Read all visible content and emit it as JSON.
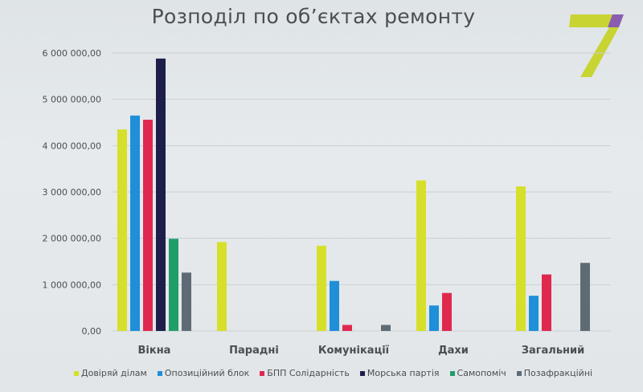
{
  "colors": {
    "background": "#e3e7e9",
    "title_text": "#4a4e52",
    "grid": "#c9cfd3",
    "axis_text": "#4a4e52",
    "logo_yellow": "#c8d432",
    "logo_purple": "#8a5db0"
  },
  "logo": {
    "icon": "channel-7-logo",
    "text": "7"
  },
  "chart_data": {
    "type": "bar",
    "title": "Розподіл по об’єктах ремонту",
    "categories": [
      "Вікна",
      "Парадні",
      "Комунікації",
      "Дахи",
      "Загальний"
    ],
    "y_ticks": [
      "0,00",
      "1 000 000,00",
      "2 000 000,00",
      "3 000 000,00",
      "4 000 000,00",
      "5 000 000,00",
      "6 000 000,00"
    ],
    "ylim": [
      0,
      6000000
    ],
    "grid": true,
    "legend_position": "bottom",
    "series": [
      {
        "name": "Довіряй ділам",
        "color": "#d6e02a",
        "values": [
          4350000,
          1920000,
          1840000,
          3250000,
          3120000
        ]
      },
      {
        "name": "Опозиційний блок",
        "color": "#1f8fd8",
        "values": [
          4650000,
          0,
          1080000,
          550000,
          760000
        ]
      },
      {
        "name": "БПП Солідарність",
        "color": "#e0284f",
        "values": [
          4560000,
          0,
          130000,
          820000,
          1220000
        ]
      },
      {
        "name": "Морська партія",
        "color": "#1d1f4a",
        "values": [
          5880000,
          0,
          0,
          0,
          0
        ]
      },
      {
        "name": "Самопоміч",
        "color": "#1f9e6a",
        "values": [
          1990000,
          0,
          0,
          0,
          0
        ]
      },
      {
        "name": "Позафракційні",
        "color": "#5f6b74",
        "values": [
          1260000,
          0,
          130000,
          0,
          1470000
        ]
      }
    ]
  }
}
